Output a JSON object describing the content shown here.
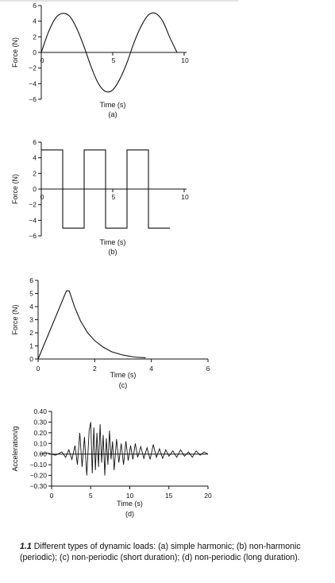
{
  "chart_data": [
    {
      "type": "line",
      "xlabel": "Time (s)",
      "ylabel": "Force (N)",
      "sublabel": "(a)",
      "xlim": [
        0,
        10
      ],
      "ylim": [
        -6,
        6
      ],
      "xticks": [
        0,
        5,
        10
      ],
      "yticks": [
        6,
        4,
        2,
        0,
        -2,
        -4,
        -6
      ],
      "ytick_labels": [
        "6",
        "4",
        "2",
        "0",
        "−2",
        "−4",
        "−6"
      ],
      "series": [
        {
          "x": [
            0,
            0.5,
            1,
            1.5,
            2,
            2.5,
            3,
            3.5,
            4,
            4.5,
            5,
            5.5,
            6,
            6.5,
            7,
            7.5,
            8,
            8.5,
            9,
            9.5
          ],
          "y": [
            0,
            2.6,
            4.4,
            5.0,
            4.6,
            3.0,
            0.7,
            -1.9,
            -4.0,
            -5.0,
            -4.8,
            -3.4,
            -1.3,
            1.3,
            3.4,
            4.8,
            5.0,
            4.0,
            1.9,
            0
          ]
        }
      ]
    },
    {
      "type": "line",
      "xlabel": "Time (s)",
      "ylabel": "Force (N)",
      "sublabel": "(b)",
      "xlim": [
        0,
        10
      ],
      "ylim": [
        -6,
        6
      ],
      "xticks": [
        0,
        5,
        10
      ],
      "yticks": [
        6,
        4,
        2,
        0,
        -2,
        -4,
        -6
      ],
      "ytick_labels": [
        "6",
        "4",
        "2",
        "0",
        "−2",
        "−4",
        "−6"
      ],
      "series": [
        {
          "x": [
            0,
            1.5,
            1.5,
            3,
            3,
            4.5,
            4.5,
            6,
            6,
            7.5,
            7.5,
            9
          ],
          "y": [
            5,
            5,
            -5,
            -5,
            5,
            5,
            -5,
            -5,
            5,
            5,
            -5,
            -5
          ]
        }
      ]
    },
    {
      "type": "line",
      "xlabel": "Time (s)",
      "ylabel": "Force (N)",
      "sublabel": "(c)",
      "xlim": [
        0,
        6
      ],
      "ylim": [
        0,
        6
      ],
      "xticks": [
        0,
        2,
        4,
        6
      ],
      "yticks": [
        6,
        5,
        4,
        3,
        2,
        1,
        0
      ],
      "ytick_labels": [
        "6",
        "5",
        "4",
        "3",
        "2",
        "1",
        "0"
      ],
      "series": [
        {
          "x": [
            0,
            1.0,
            1.1,
            1.3,
            1.5,
            1.75,
            2.0,
            2.3,
            2.6,
            3.0,
            3.4,
            3.8
          ],
          "y": [
            0,
            5.2,
            5.2,
            3.9,
            2.9,
            2.0,
            1.4,
            0.9,
            0.55,
            0.3,
            0.15,
            0.1
          ]
        }
      ]
    },
    {
      "type": "line",
      "xlabel": "Time (s)",
      "ylabel": "Acceleration/g",
      "sublabel": "(d)",
      "xlim": [
        0,
        20
      ],
      "ylim": [
        -0.3,
        0.4
      ],
      "xticks": [
        0,
        5,
        10,
        15,
        20
      ],
      "yticks": [
        0.4,
        0.3,
        0.2,
        0.1,
        0,
        -0.1,
        -0.2,
        -0.3
      ],
      "ytick_labels": [
        "0.40",
        "0.30",
        "0.20",
        "0.10",
        "0.00",
        "−0.10",
        "−0.20",
        "−0.30"
      ],
      "series": [
        {
          "x": [
            -1.5,
            -0.5,
            0.5,
            1.3,
            1.8,
            2.2,
            2.6,
            3.0,
            3.3,
            3.6,
            3.9,
            4.2,
            4.5,
            4.8,
            5.0,
            5.2,
            5.4,
            5.6,
            5.8,
            6.0,
            6.2,
            6.4,
            6.6,
            6.8,
            7.0,
            7.2,
            7.4,
            7.6,
            7.8,
            8.0,
            8.3,
            8.6,
            8.9,
            9.2,
            9.5,
            9.8,
            10.1,
            10.4,
            10.7,
            11.0,
            11.4,
            11.8,
            12.2,
            12.6,
            13.0,
            13.4,
            13.8,
            14.2,
            14.6,
            15.0,
            15.5,
            16.0,
            16.5,
            17.0,
            17.5,
            18.0,
            18.5,
            19.0,
            19.5,
            20.0
          ],
          "y": [
            0.0,
            0.01,
            -0.01,
            0.02,
            -0.03,
            0.04,
            -0.05,
            0.08,
            -0.1,
            0.2,
            -0.12,
            0.16,
            -0.2,
            0.22,
            0.3,
            -0.18,
            0.25,
            -0.15,
            0.2,
            -0.12,
            0.28,
            -0.08,
            0.18,
            -0.2,
            0.15,
            -0.1,
            0.22,
            -0.05,
            0.12,
            -0.15,
            0.14,
            -0.08,
            0.1,
            -0.1,
            0.12,
            -0.06,
            0.08,
            -0.05,
            0.1,
            -0.03,
            0.07,
            -0.04,
            0.06,
            -0.05,
            0.09,
            -0.03,
            0.05,
            -0.04,
            0.04,
            -0.02,
            0.03,
            -0.03,
            0.04,
            -0.02,
            0.02,
            -0.03,
            0.03,
            -0.01,
            0.02,
            0.0
          ]
        }
      ]
    }
  ],
  "caption": {
    "number": "1.1",
    "text": "Different types of dynamic loads: (a) simple harmonic; (b) non-harmonic (periodic); (c) non-periodic (short duration); (d) non-periodic (long duration)."
  }
}
